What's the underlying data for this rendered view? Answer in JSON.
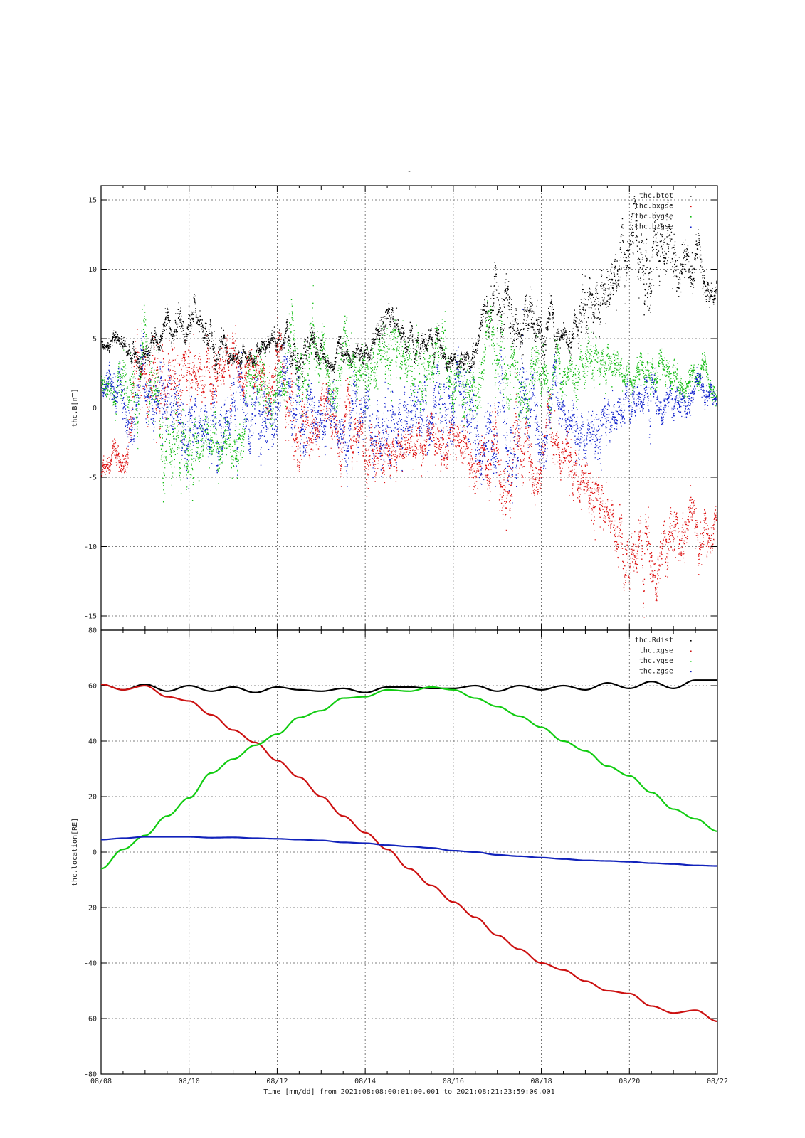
{
  "figure": {
    "title": "-",
    "xaxis_label": "Time [mm/dd]  from 2021:08:08:00:01:00.001  to  2021:08:21:23:59:00.001",
    "xticks": [
      "08/08",
      "08/10",
      "08/12",
      "08/14",
      "08/16",
      "08/18",
      "08/20",
      "08/22"
    ]
  },
  "chart_data": [
    {
      "type": "scatter",
      "ylabel": "thc.B[nT]",
      "ylim": [
        -15,
        15
      ],
      "yticks": [
        -15,
        -10,
        -5,
        0,
        5,
        10,
        15
      ],
      "xlim_days": [
        0,
        14
      ],
      "grid": true,
      "legend_position": "top-right",
      "series": [
        {
          "name": "thc.btot",
          "color": "#000000",
          "x": [
            0,
            0.5,
            1,
            1.5,
            2,
            2.5,
            3,
            3.5,
            4,
            4.5,
            5,
            5.5,
            6,
            6.5,
            7,
            7.5,
            8,
            8.5,
            9,
            9.5,
            10,
            10.5,
            11,
            11.5,
            12,
            12.5,
            13,
            13.5,
            14
          ],
          "y": [
            4.8,
            4.5,
            3.5,
            5.5,
            6.2,
            5.8,
            4.0,
            4.0,
            4.5,
            4.3,
            3.8,
            3.5,
            4.0,
            6.5,
            5.0,
            4.5,
            3.5,
            4.0,
            7.5,
            6.5,
            6.0,
            5.0,
            7.0,
            8.0,
            11.5,
            9.5,
            12.0,
            10.0,
            8.5
          ],
          "spread": [
            0.3,
            0.4,
            0.6,
            0.8,
            0.9,
            0.9,
            0.5,
            0.4,
            0.6,
            1.0,
            0.5,
            0.6,
            0.6,
            0.9,
            0.8,
            0.6,
            0.5,
            0.8,
            1.8,
            1.5,
            1.2,
            0.6,
            1.5,
            1.6,
            1.8,
            1.8,
            1.8,
            1.2,
            0.5
          ]
        },
        {
          "name": "thc.bxgse",
          "color": "#dd1111",
          "x": [
            0,
            0.5,
            1,
            1.5,
            2,
            2.5,
            3,
            3.5,
            4,
            4.5,
            5,
            5.5,
            6,
            6.5,
            7,
            7.5,
            8,
            8.5,
            9,
            9.5,
            10,
            10.5,
            11,
            11.5,
            12,
            12.5,
            13,
            13.5,
            14
          ],
          "y": [
            -4.5,
            -3.0,
            1.5,
            2.0,
            2.5,
            3.0,
            2.5,
            3.5,
            0.5,
            -2.0,
            0.0,
            -1.5,
            -2.5,
            -3.5,
            -3.0,
            -2.5,
            -3.0,
            -3.0,
            -4.5,
            -4.0,
            -3.5,
            -3.5,
            -5.5,
            -7.5,
            -10.5,
            -11.5,
            -8.0,
            -10.5,
            -8.5
          ],
          "spread": [
            0.4,
            1.0,
            2.5,
            2.5,
            2.0,
            1.5,
            1.2,
            1.0,
            2.0,
            2.0,
            1.5,
            1.5,
            1.5,
            1.2,
            1.2,
            1.0,
            1.0,
            1.5,
            2.0,
            2.0,
            1.5,
            1.5,
            1.5,
            1.5,
            1.5,
            1.5,
            1.5,
            1.5,
            1.0
          ]
        },
        {
          "name": "thc.bygse",
          "color": "#11bb11",
          "x": [
            0,
            0.5,
            1,
            1.5,
            2,
            2.5,
            3,
            3.5,
            4,
            4.5,
            5,
            5.5,
            6,
            6.5,
            7,
            7.5,
            8,
            8.5,
            9,
            9.5,
            10,
            10.5,
            11,
            11.5,
            12,
            12.5,
            13,
            13.5,
            14
          ],
          "y": [
            2.0,
            1.5,
            2.5,
            -2.0,
            -3.5,
            -2.5,
            -3.5,
            1.5,
            2.0,
            4.0,
            3.0,
            2.0,
            2.5,
            4.5,
            3.5,
            3.0,
            2.5,
            2.0,
            3.0,
            2.0,
            2.5,
            2.0,
            3.5,
            3.0,
            2.0,
            2.5,
            2.0,
            2.5,
            1.5
          ],
          "spread": [
            0.6,
            1.5,
            2.0,
            2.0,
            2.0,
            1.5,
            1.0,
            1.5,
            1.5,
            2.0,
            1.5,
            1.5,
            1.5,
            1.8,
            1.8,
            1.5,
            1.5,
            1.5,
            2.0,
            2.0,
            1.5,
            1.0,
            1.2,
            1.2,
            0.8,
            0.8,
            0.8,
            0.8,
            0.6
          ]
        },
        {
          "name": "thc.bzgse",
          "color": "#1122cc",
          "x": [
            0,
            0.5,
            1,
            1.5,
            2,
            2.5,
            3,
            3.5,
            4,
            4.5,
            5,
            5.5,
            6,
            6.5,
            7,
            7.5,
            8,
            8.5,
            9,
            9.5,
            10,
            10.5,
            11,
            11.5,
            12,
            12.5,
            13,
            13.5,
            14
          ],
          "y": [
            1.5,
            0.5,
            -0.5,
            1.0,
            -1.5,
            -1.0,
            -1.0,
            0.5,
            0.0,
            -1.0,
            0.0,
            -1.5,
            -0.5,
            -2.0,
            -1.0,
            -1.0,
            0.0,
            -1.0,
            -2.0,
            -1.0,
            -1.0,
            -1.0,
            -2.0,
            -1.0,
            1.0,
            0.0,
            1.0,
            0.5,
            0.8
          ],
          "spread": [
            0.6,
            1.5,
            2.0,
            2.0,
            2.0,
            1.8,
            1.5,
            2.0,
            1.5,
            2.0,
            1.5,
            1.5,
            1.5,
            2.0,
            2.0,
            1.8,
            1.8,
            2.0,
            2.5,
            2.5,
            2.0,
            1.2,
            1.5,
            1.5,
            1.0,
            1.0,
            0.8,
            0.8,
            0.5
          ]
        }
      ]
    },
    {
      "type": "line",
      "ylabel": "thc.location[RE]",
      "ylim": [
        -80,
        80
      ],
      "yticks": [
        -80,
        -60,
        -40,
        -20,
        0,
        20,
        40,
        60,
        80
      ],
      "xlim_days": [
        0,
        14
      ],
      "grid": true,
      "legend_position": "top-right",
      "series": [
        {
          "name": "thc.Rdist",
          "color": "#000000",
          "x": [
            0,
            0.5,
            1,
            1.5,
            2,
            2.5,
            3,
            3.5,
            4,
            4.5,
            5,
            5.5,
            6,
            6.5,
            7,
            7.5,
            8,
            8.5,
            9,
            9.5,
            10,
            10.5,
            11,
            11.5,
            12,
            12.5,
            13,
            13.5,
            14
          ],
          "y": [
            60.5,
            58.5,
            60.5,
            58.0,
            60.0,
            58.0,
            59.5,
            57.5,
            59.5,
            58.5,
            58.0,
            59.0,
            57.5,
            59.5,
            59.5,
            59.0,
            59.0,
            60.0,
            58.0,
            60.0,
            58.5,
            60.0,
            58.5,
            61.0,
            59.0,
            61.5,
            59.0,
            62.0,
            62.0
          ]
        },
        {
          "name": "thc.xgse",
          "color": "#cc1111",
          "x": [
            0,
            0.5,
            1,
            1.5,
            2,
            2.5,
            3,
            3.5,
            4,
            4.5,
            5,
            5.5,
            6,
            6.5,
            7,
            7.5,
            8,
            8.5,
            9,
            9.5,
            10,
            10.5,
            11,
            11.5,
            12,
            12.5,
            13,
            13.5,
            14
          ],
          "y": [
            60.5,
            58.5,
            60.0,
            56.0,
            54.5,
            49.5,
            44.0,
            39.5,
            33.0,
            27.0,
            20.0,
            13.0,
            7.0,
            1.0,
            -6.0,
            -12.0,
            -18.0,
            -23.5,
            -30.0,
            -35.0,
            -40.0,
            -42.5,
            -46.5,
            -50.0,
            -51.0,
            -55.5,
            -58.0,
            -57.0,
            -61.0
          ]
        },
        {
          "name": "thc.ygse",
          "color": "#11cc11",
          "x": [
            0,
            0.5,
            1,
            1.5,
            2,
            2.5,
            3,
            3.5,
            4,
            4.5,
            5,
            5.5,
            6,
            6.5,
            7,
            7.5,
            8,
            8.5,
            9,
            9.5,
            10,
            10.5,
            11,
            11.5,
            12,
            12.5,
            13,
            13.5,
            14
          ],
          "y": [
            -6.0,
            1.0,
            6.0,
            13.0,
            19.5,
            28.5,
            33.5,
            38.5,
            42.5,
            48.5,
            51.0,
            55.5,
            56.0,
            58.5,
            58.0,
            59.5,
            58.5,
            55.5,
            52.5,
            49.0,
            45.0,
            40.0,
            36.5,
            31.0,
            27.5,
            21.5,
            15.5,
            12.0,
            7.5
          ]
        },
        {
          "name": "thc.zgse",
          "color": "#1122bb",
          "x": [
            0,
            0.5,
            1,
            1.5,
            2,
            2.5,
            3,
            3.5,
            4,
            4.5,
            5,
            5.5,
            6,
            6.5,
            7,
            7.5,
            8,
            8.5,
            9,
            9.5,
            10,
            10.5,
            11,
            11.5,
            12,
            12.5,
            13,
            13.5,
            14
          ],
          "y": [
            4.5,
            5.0,
            5.5,
            5.5,
            5.5,
            5.2,
            5.3,
            5.0,
            4.8,
            4.5,
            4.2,
            3.5,
            3.2,
            2.5,
            2.0,
            1.5,
            0.5,
            0.0,
            -1.0,
            -1.5,
            -2.0,
            -2.5,
            -3.0,
            -3.2,
            -3.5,
            -4.0,
            -4.3,
            -4.8,
            -5.0
          ]
        }
      ]
    }
  ]
}
